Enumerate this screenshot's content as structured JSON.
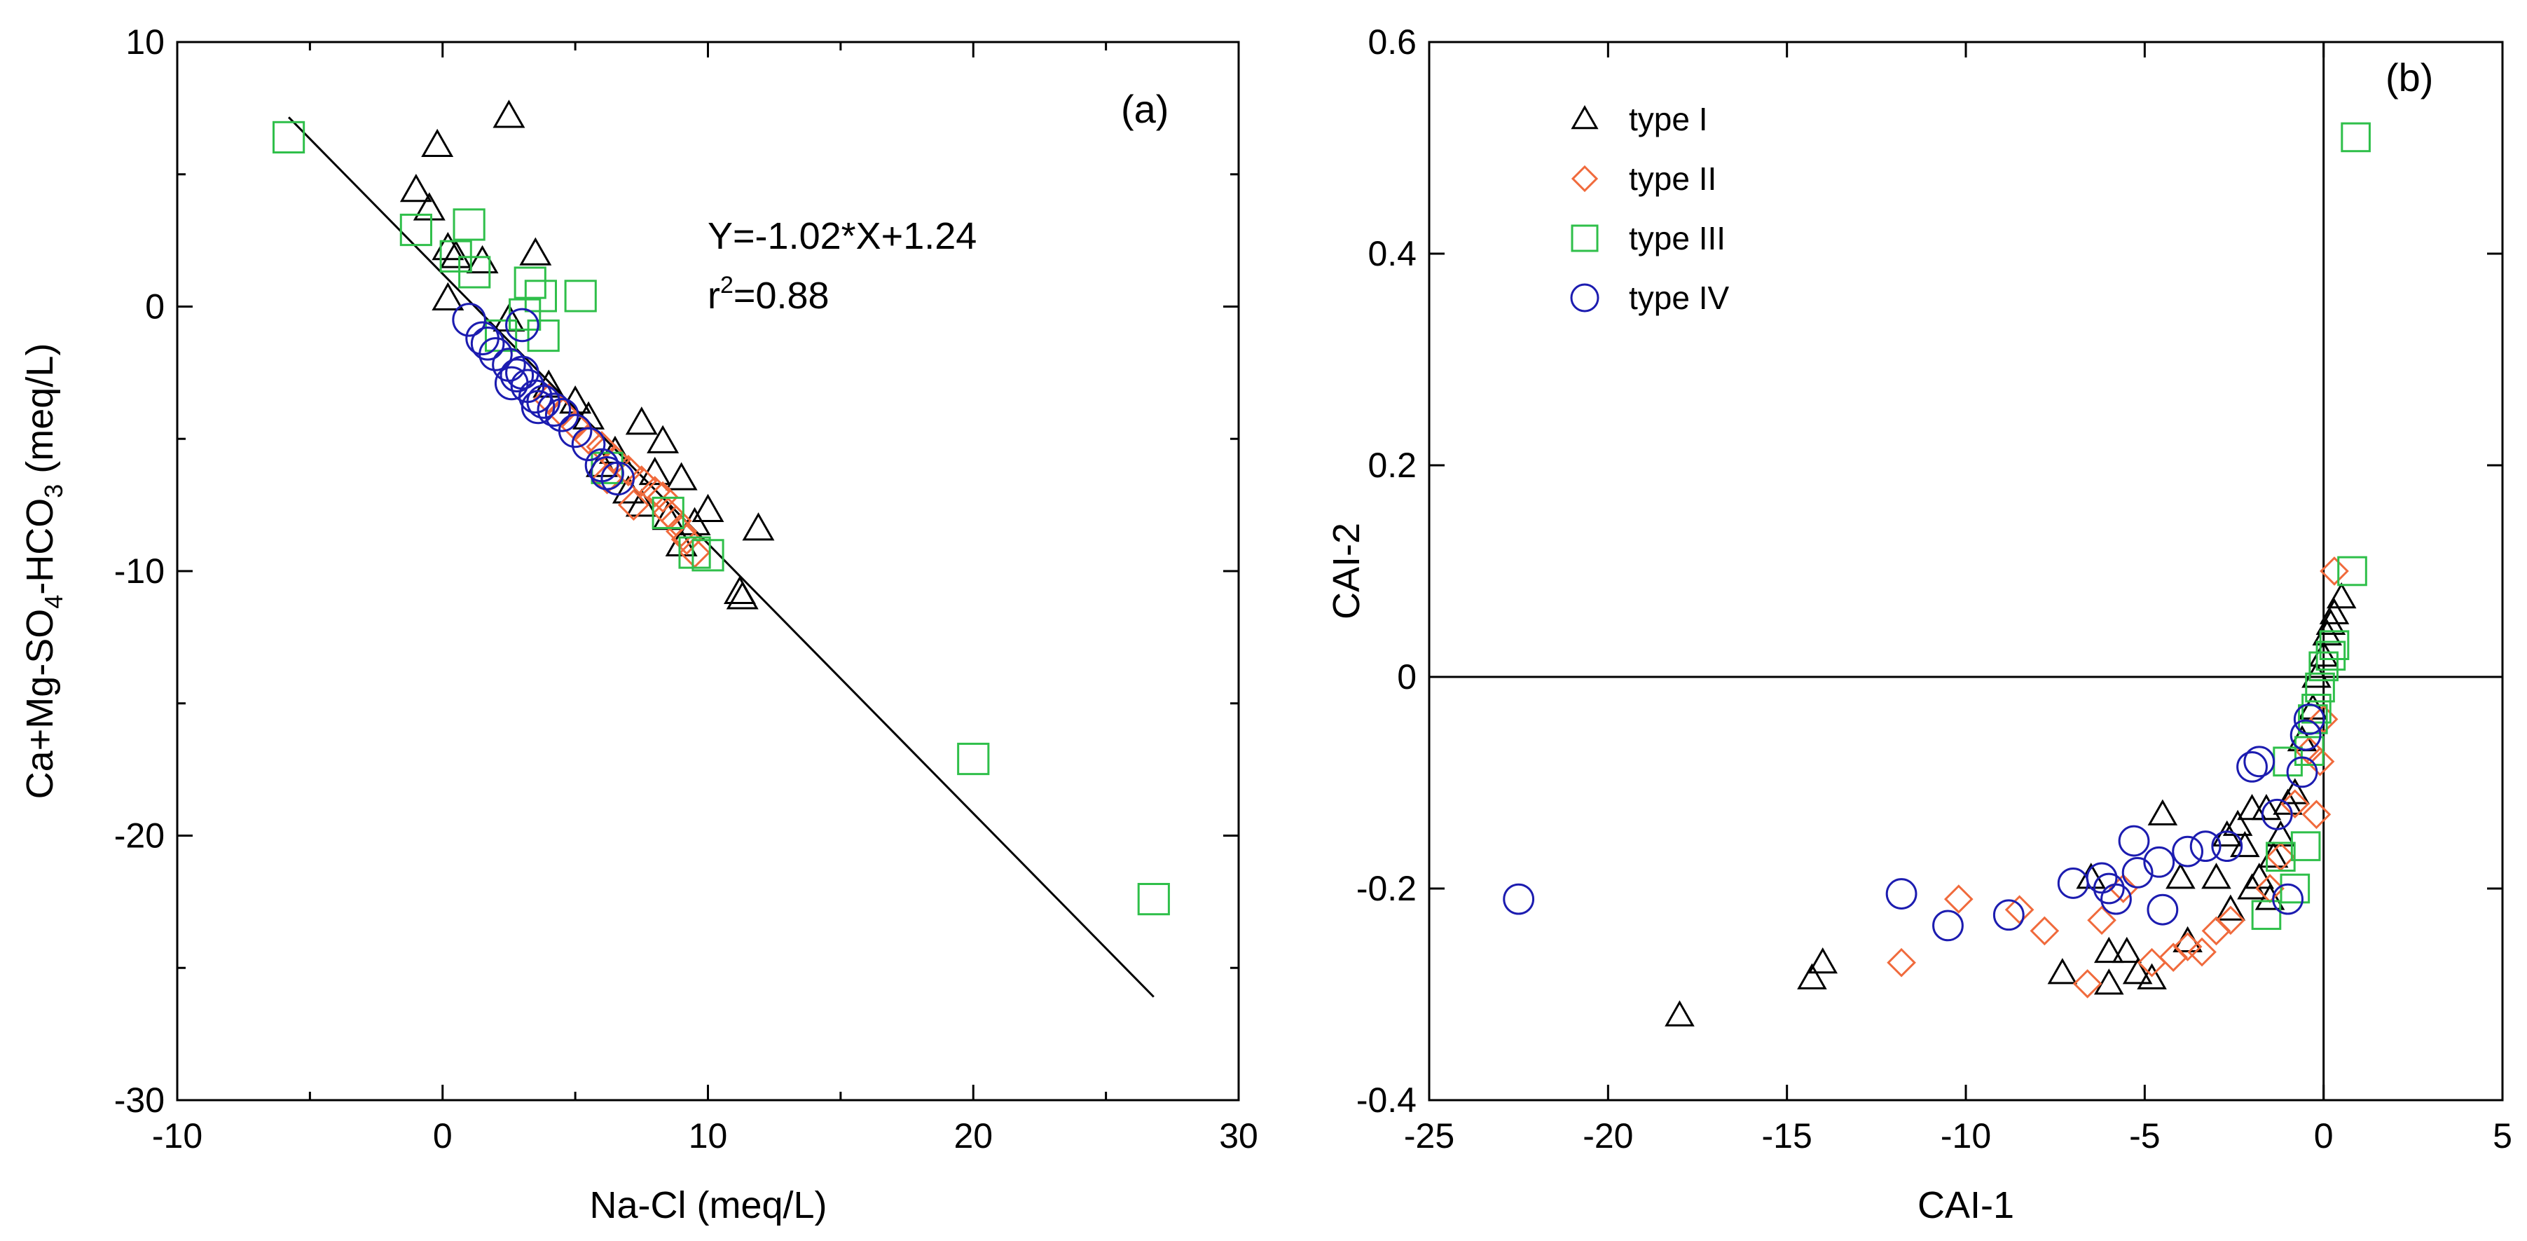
{
  "colors": {
    "type_I": "#000000",
    "type_II": "#f06a3c",
    "type_III": "#2fbf4a",
    "type_IV": "#1c1cb0"
  },
  "chart_data": [
    {
      "type": "scatter",
      "panel_label": "(a)",
      "xlabel": "Na-Cl (meq/L)",
      "ylabel_parts": {
        "base": "Ca+Mg-SO",
        "sub1": "4",
        "mid": "-HCO",
        "sub2": "3",
        "unit": " (meq/L)"
      },
      "xlim": [
        -10,
        30
      ],
      "ylim": [
        -30,
        10
      ],
      "xticks": [
        -10,
        0,
        10,
        20,
        30
      ],
      "yticks": [
        -30,
        -20,
        -10,
        0,
        10
      ],
      "xminor": [
        -5,
        5,
        15,
        25
      ],
      "yminor": [
        -25,
        -15,
        -5,
        5
      ],
      "grid": false,
      "regression": {
        "equation": "Y=-1.02*X+1.24",
        "r2_label": "r",
        "r2_exp": "2",
        "r2_value": "=0.88",
        "x_range": [
          -5.8,
          26.8
        ],
        "slope": -1.02,
        "intercept": 1.24
      },
      "series": [
        {
          "name": "type I",
          "marker": "triangle",
          "points": [
            [
              -1,
              4.4
            ],
            [
              -0.5,
              3.7
            ],
            [
              -0.2,
              6.1
            ],
            [
              0.2,
              2.2
            ],
            [
              0.2,
              0.3
            ],
            [
              0.5,
              1.9
            ],
            [
              1.5,
              1.7
            ],
            [
              2.5,
              7.2
            ],
            [
              2.5,
              -0.5
            ],
            [
              3.5,
              2.0
            ],
            [
              4,
              -3
            ],
            [
              5,
              -3.6
            ],
            [
              5.5,
              -4.2
            ],
            [
              6,
              -6
            ],
            [
              6.5,
              -5.5
            ],
            [
              7,
              -7
            ],
            [
              7.5,
              -4.4
            ],
            [
              7.5,
              -7.5
            ],
            [
              8,
              -6.3
            ],
            [
              8.3,
              -5.1
            ],
            [
              8.5,
              -8
            ],
            [
              9,
              -6.5
            ],
            [
              9,
              -9
            ],
            [
              9.5,
              -8.2
            ],
            [
              10,
              -7.7
            ],
            [
              11.2,
              -10.8
            ],
            [
              11.3,
              -11
            ],
            [
              11.9,
              -8.4
            ]
          ]
        },
        {
          "name": "type II",
          "marker": "diamond",
          "points": [
            [
              4,
              -3.5
            ],
            [
              4.5,
              -4
            ],
            [
              5,
              -4.5
            ],
            [
              5.5,
              -5
            ],
            [
              6,
              -5.3
            ],
            [
              6.5,
              -5.8
            ],
            [
              7,
              -6.2
            ],
            [
              7.5,
              -6.6
            ],
            [
              8,
              -7
            ],
            [
              8.3,
              -7.2
            ],
            [
              8.5,
              -7.8
            ],
            [
              8.8,
              -8.1
            ],
            [
              9,
              -8.5
            ],
            [
              9.2,
              -8.8
            ],
            [
              9.5,
              -9.3
            ],
            [
              6.2,
              -6.5
            ],
            [
              7.2,
              -7.5
            ]
          ]
        },
        {
          "name": "type III",
          "marker": "square",
          "points": [
            [
              -5.8,
              6.4
            ],
            [
              -1,
              2.9
            ],
            [
              0.5,
              1.9
            ],
            [
              1,
              3.1
            ],
            [
              1.2,
              1.3
            ],
            [
              2.2,
              -1.1
            ],
            [
              3.1,
              -0.3
            ],
            [
              3.3,
              0.9
            ],
            [
              3.7,
              0.4
            ],
            [
              3.8,
              -1.1
            ],
            [
              5.2,
              0.4
            ],
            [
              6.2,
              -6.1
            ],
            [
              8.5,
              -7.8
            ],
            [
              9.5,
              -9.3
            ],
            [
              10,
              -9.4
            ],
            [
              20,
              -17.1
            ],
            [
              26.8,
              -22.4
            ]
          ]
        },
        {
          "name": "type IV",
          "marker": "circle",
          "points": [
            [
              1,
              -0.5
            ],
            [
              1.5,
              -1.2
            ],
            [
              2,
              -1.8
            ],
            [
              2.5,
              -2.2
            ],
            [
              2.8,
              -2.6
            ],
            [
              3,
              -2.5
            ],
            [
              3,
              -0.7
            ],
            [
              3.2,
              -3
            ],
            [
              3.5,
              -3.4
            ],
            [
              3.8,
              -3.6
            ],
            [
              4.2,
              -3.9
            ],
            [
              4.5,
              -4.1
            ],
            [
              3.6,
              -3.8
            ],
            [
              5,
              -4.7
            ],
            [
              5.5,
              -5.2
            ],
            [
              6,
              -6
            ],
            [
              6.2,
              -6.3
            ],
            [
              6.6,
              -6.5
            ],
            [
              1.7,
              -1.4
            ],
            [
              2.6,
              -2.9
            ]
          ]
        }
      ]
    },
    {
      "type": "scatter",
      "panel_label": "(b)",
      "xlabel": "CAI-1",
      "ylabel": "CAI-2",
      "xlim": [
        -25,
        5
      ],
      "ylim": [
        -0.4,
        0.6
      ],
      "xticks": [
        -25,
        -20,
        -15,
        -10,
        -5,
        0,
        5
      ],
      "yticks": [
        -0.4,
        -0.2,
        0,
        0.2,
        0.4,
        0.6
      ],
      "xtick_labels": [
        "-25",
        "-20",
        "-15",
        "-10",
        "-5",
        "0",
        "5"
      ],
      "ytick_labels": [
        "-0.4",
        "-0.2",
        "0",
        "0.2",
        "0.4",
        "0.6"
      ],
      "reference_lines": {
        "x": 0,
        "y": 0
      },
      "grid": false,
      "legend": {
        "placement": "top-left",
        "entries": [
          "type I",
          "type II",
          "type III",
          "type IV"
        ]
      },
      "series": [
        {
          "name": "type I",
          "marker": "triangle",
          "points": [
            [
              -18,
              -0.32
            ],
            [
              -14.3,
              -0.285
            ],
            [
              -14,
              -0.27
            ],
            [
              -7.3,
              -0.28
            ],
            [
              -6.5,
              -0.19
            ],
            [
              -6,
              -0.26
            ],
            [
              -6,
              -0.29
            ],
            [
              -5.5,
              -0.26
            ],
            [
              -5.2,
              -0.28
            ],
            [
              -4.8,
              -0.285
            ],
            [
              -4.5,
              -0.13
            ],
            [
              -4,
              -0.19
            ],
            [
              -3.8,
              -0.25
            ],
            [
              -3,
              -0.19
            ],
            [
              -2.7,
              -0.15
            ],
            [
              -2.6,
              -0.22
            ],
            [
              -2.2,
              -0.16
            ],
            [
              -2,
              -0.2
            ],
            [
              -2,
              -0.125
            ],
            [
              -1.8,
              -0.19
            ],
            [
              -1.6,
              -0.125
            ],
            [
              -1.4,
              -0.17
            ],
            [
              -1.2,
              -0.15
            ],
            [
              -1,
              -0.12
            ],
            [
              -0.8,
              -0.11
            ],
            [
              -0.6,
              -0.06
            ],
            [
              -0.3,
              -0.03
            ],
            [
              -0.2,
              0
            ],
            [
              0,
              0.02
            ],
            [
              0.1,
              0.04
            ],
            [
              0.2,
              0.05
            ],
            [
              0.3,
              0.06
            ],
            [
              0.5,
              0.075
            ],
            [
              -1.5,
              -0.21
            ],
            [
              -2.4,
              -0.14
            ]
          ]
        },
        {
          "name": "type II",
          "marker": "diamond",
          "points": [
            [
              -11.8,
              -0.27
            ],
            [
              -10.2,
              -0.21
            ],
            [
              -8.5,
              -0.22
            ],
            [
              -7.8,
              -0.24
            ],
            [
              -6.6,
              -0.29
            ],
            [
              -6.2,
              -0.23
            ],
            [
              -5.6,
              -0.2
            ],
            [
              -4.8,
              -0.27
            ],
            [
              -4.2,
              -0.265
            ],
            [
              -3.8,
              -0.255
            ],
            [
              -3.4,
              -0.26
            ],
            [
              -3,
              -0.24
            ],
            [
              -2.6,
              -0.23
            ],
            [
              -1.5,
              -0.2
            ],
            [
              -1.2,
              -0.17
            ],
            [
              -0.8,
              -0.12
            ],
            [
              -0.4,
              -0.07
            ],
            [
              0,
              -0.04
            ],
            [
              0.3,
              0.1
            ],
            [
              -0.2,
              -0.13
            ],
            [
              -0.1,
              -0.08
            ]
          ]
        },
        {
          "name": "type III",
          "marker": "square",
          "points": [
            [
              0.9,
              0.51
            ],
            [
              0.8,
              0.1
            ],
            [
              -1.6,
              -0.225
            ],
            [
              -1.2,
              -0.17
            ],
            [
              -1,
              -0.08
            ],
            [
              -0.8,
              -0.2
            ],
            [
              -0.5,
              -0.16
            ],
            [
              -0.4,
              -0.07
            ],
            [
              -0.3,
              -0.04
            ],
            [
              -0.2,
              -0.03
            ],
            [
              -0.1,
              -0.01
            ],
            [
              0,
              0.01
            ],
            [
              0.2,
              0.02
            ],
            [
              0.3,
              0.03
            ]
          ]
        },
        {
          "name": "type IV",
          "marker": "circle",
          "points": [
            [
              -22.5,
              -0.21
            ],
            [
              -11.8,
              -0.205
            ],
            [
              -10.5,
              -0.235
            ],
            [
              -8.8,
              -0.225
            ],
            [
              -7,
              -0.195
            ],
            [
              -6.2,
              -0.19
            ],
            [
              -6,
              -0.2
            ],
            [
              -5.8,
              -0.21
            ],
            [
              -5.2,
              -0.185
            ],
            [
              -5.3,
              -0.155
            ],
            [
              -4.6,
              -0.175
            ],
            [
              -4.5,
              -0.22
            ],
            [
              -3.8,
              -0.165
            ],
            [
              -3.3,
              -0.16
            ],
            [
              -2.7,
              -0.16
            ],
            [
              -2,
              -0.085
            ],
            [
              -1.8,
              -0.08
            ],
            [
              -1.3,
              -0.13
            ],
            [
              -1,
              -0.21
            ],
            [
              -0.6,
              -0.09
            ],
            [
              -0.5,
              -0.055
            ],
            [
              -0.4,
              -0.04
            ]
          ]
        }
      ]
    }
  ]
}
